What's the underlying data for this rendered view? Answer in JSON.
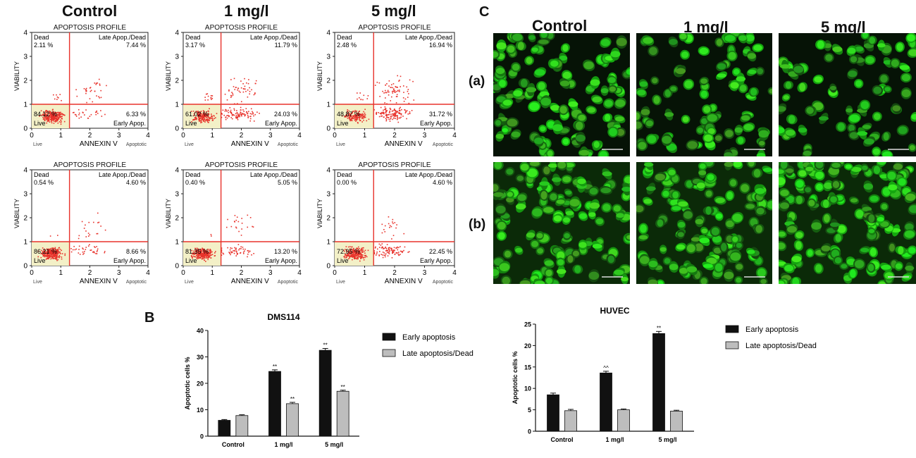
{
  "panel_labels": {
    "b": "B",
    "c": "C"
  },
  "flow_headers": [
    "Control",
    "1 mg/l",
    "5 mg/l"
  ],
  "micro_headers": [
    "Control",
    "1 mg/l",
    "5 mg/l"
  ],
  "micro_rows": [
    "(a)",
    "(b)"
  ],
  "colors": {
    "flow_red": "#e8322b",
    "live_fill": "#f3f0c7",
    "bar_early": "#111111",
    "bar_late": "#bdbdbd",
    "cell_green": "#35c82a"
  },
  "chart_data": [
    {
      "type": "scatter",
      "group": "top",
      "condition": "Control",
      "title": "APOPTOSIS PROFILE",
      "xlabel": "ANNEXIN V",
      "ylabel": "VIABILITY",
      "xlim": [
        0,
        4
      ],
      "ylim": [
        0,
        4
      ],
      "x_ticks": [
        "0",
        "1",
        "2",
        "3",
        "4"
      ],
      "y_ticks": [
        "0",
        "1",
        "2",
        "3",
        "4"
      ],
      "x_sub": {
        "left": "Live",
        "right": "Apoptotic"
      },
      "quadrants": {
        "dead_label": "Dead",
        "dead": "2.11 %",
        "late_label": "Late Apop./Dead",
        "late": "7.44 %",
        "live_label": "Live",
        "live": "84.12 %",
        "early_label": "Early Apop.",
        "early": "6.33 %"
      }
    },
    {
      "type": "scatter",
      "group": "top",
      "condition": "1 mg/l",
      "title": "APOPTOSIS PROFILE",
      "xlabel": "ANNEXIN V",
      "ylabel": "VIABILITY",
      "xlim": [
        0,
        4
      ],
      "ylim": [
        0,
        4
      ],
      "x_ticks": [
        "0",
        "1",
        "2",
        "3",
        "4"
      ],
      "y_ticks": [
        "0",
        "1",
        "2",
        "3",
        "4"
      ],
      "x_sub": {
        "left": "Live",
        "right": "Apoptotic"
      },
      "quadrants": {
        "dead_label": "Dead",
        "dead": "3.17 %",
        "late_label": "Late Apop./Dead",
        "late": "11.79 %",
        "live_label": "Live",
        "live": "61.02 %",
        "early_label": "Early Apop.",
        "early": "24.03 %"
      }
    },
    {
      "type": "scatter",
      "group": "top",
      "condition": "5 mg/l",
      "title": "APOPTOSIS PROFILE",
      "xlabel": "ANNEXIN V",
      "ylabel": "VIABILITY",
      "xlim": [
        0,
        4
      ],
      "ylim": [
        0,
        4
      ],
      "x_ticks": [
        "0",
        "1",
        "2",
        "3",
        "4"
      ],
      "y_ticks": [
        "0",
        "1",
        "2",
        "3",
        "4"
      ],
      "x_sub": {
        "left": "Live",
        "right": "Apoptotic"
      },
      "quadrants": {
        "dead_label": "Dead",
        "dead": "2.48 %",
        "late_label": "Late Apop./Dead",
        "late": "16.94 %",
        "live_label": "Live",
        "live": "48.87 %",
        "early_label": "Early Apop.",
        "early": "31.72 %"
      }
    },
    {
      "type": "scatter",
      "group": "bottom",
      "condition": "Control",
      "title": "APOPTOSIS PROFILE",
      "xlabel": "ANNEXIN V",
      "ylabel": "VIABILITY",
      "xlim": [
        0,
        4
      ],
      "ylim": [
        0,
        4
      ],
      "x_ticks": [
        "0",
        "1",
        "2",
        "3",
        "4"
      ],
      "y_ticks": [
        "0",
        "1",
        "2",
        "3",
        "4"
      ],
      "x_sub": {
        "left": "Live",
        "right": "Apoptotic"
      },
      "quadrants": {
        "dead_label": "Dead",
        "dead": "0.54 %",
        "late_label": "Late Apop./Dead",
        "late": "4.60 %",
        "live_label": "Live",
        "live": "86.21 %",
        "early_label": "Early Apop.",
        "early": "8.66 %"
      }
    },
    {
      "type": "scatter",
      "group": "bottom",
      "condition": "1 mg/l",
      "title": "APOPTOSIS PROFILE",
      "xlabel": "ANNEXIN V",
      "ylabel": "VIABILITY",
      "xlim": [
        0,
        4
      ],
      "ylim": [
        0,
        4
      ],
      "x_ticks": [
        "0",
        "1",
        "2",
        "3",
        "4"
      ],
      "y_ticks": [
        "0",
        "1",
        "2",
        "3",
        "4"
      ],
      "x_sub": {
        "left": "Live",
        "right": "Apoptotic"
      },
      "quadrants": {
        "dead_label": "Dead",
        "dead": "0.40 %",
        "late_label": "Late Apop./Dead",
        "late": "5.05 %",
        "live_label": "Live",
        "live": "81.35 %",
        "early_label": "Early Apop.",
        "early": "13.20 %"
      }
    },
    {
      "type": "scatter",
      "group": "bottom",
      "condition": "5 mg/l",
      "title": "APOPTOSIS PROFILE",
      "xlabel": "ANNEXIN V",
      "ylabel": "VIABILITY",
      "xlim": [
        0,
        4
      ],
      "ylim": [
        0,
        4
      ],
      "x_ticks": [
        "0",
        "1",
        "2",
        "3",
        "4"
      ],
      "y_ticks": [
        "0",
        "1",
        "2",
        "3",
        "4"
      ],
      "x_sub": {
        "left": "Live",
        "right": "Apoptotic"
      },
      "quadrants": {
        "dead_label": "Dead",
        "dead": "0.00 %",
        "late_label": "Late Apop./Dead",
        "late": "4.60 %",
        "live_label": "Live",
        "live": "72.95 %",
        "early_label": "Early Apop.",
        "early": "22.45 %"
      }
    },
    {
      "type": "bar",
      "title": "DMS114",
      "xlabel": "",
      "ylabel": "Apoptotic cells %",
      "categories": [
        "Control",
        "1 mg/l",
        "5 mg/l"
      ],
      "ylim": [
        0,
        40
      ],
      "yticks": [
        0,
        10,
        20,
        30,
        40
      ],
      "series": [
        {
          "name": "Early apoptosis",
          "values": [
            6,
            24.5,
            32.5
          ],
          "errors": [
            0.3,
            0.6,
            0.7
          ],
          "marks": [
            "",
            "**",
            "**"
          ]
        },
        {
          "name": "Late apoptosis/Dead",
          "values": [
            7.8,
            12.3,
            17
          ],
          "errors": [
            0.3,
            0.5,
            0.4
          ],
          "marks": [
            "",
            "**",
            "**"
          ]
        }
      ],
      "legend": "right"
    },
    {
      "type": "bar",
      "title": "HUVEC",
      "xlabel": "",
      "ylabel": "Apoptotic cells %",
      "categories": [
        "Control",
        "1 mg/l",
        "5 mg/l"
      ],
      "ylim": [
        0,
        25
      ],
      "yticks": [
        0,
        5,
        10,
        15,
        20,
        25
      ],
      "series": [
        {
          "name": "Early apoptosis",
          "values": [
            8.5,
            13.6,
            22.8
          ],
          "errors": [
            0.4,
            0.4,
            0.5
          ],
          "marks": [
            "",
            "^^",
            "**"
          ]
        },
        {
          "name": "Late apoptosis/Dead",
          "values": [
            4.8,
            5,
            4.7
          ],
          "errors": [
            0.3,
            0.2,
            0.2
          ],
          "marks": [
            "",
            "",
            ""
          ]
        }
      ],
      "legend": "right"
    }
  ]
}
